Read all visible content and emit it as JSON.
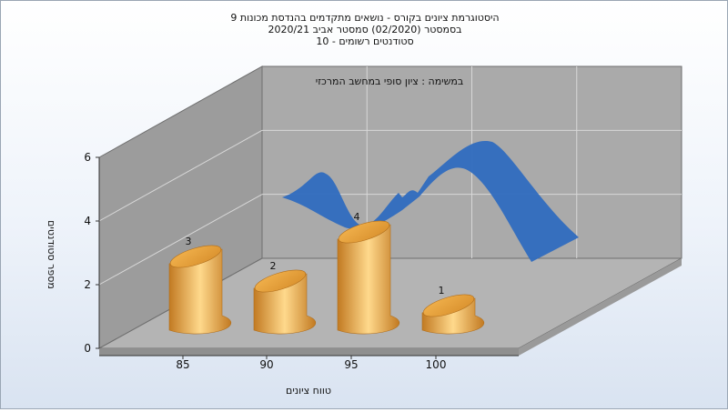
{
  "chart_data": {
    "type": "bar",
    "title_lines": [
      "היסטוגרמת ציונים בקורס - נושאים מתקדמים בהנדסת מכונות 9",
      "בסמסטר  (02/2020)  סמסטר אביב 2020/21",
      "סטודנטים רשומים - 10"
    ],
    "subtitle": "במשימה : ציון סופי במחשב המרכזי",
    "xlabel": "טווח ציונים",
    "ylabel": "מספר סטודנטים",
    "categories": [
      "85",
      "90",
      "95",
      "100"
    ],
    "values": [
      3,
      2,
      4,
      1
    ],
    "data_labels": [
      "3",
      "2",
      "4",
      "1"
    ],
    "y_ticks": [
      "0",
      "2",
      "4",
      "6"
    ],
    "ylim": [
      0,
      6
    ],
    "trend_curve": true,
    "colors": {
      "bar_light": "#ffd280",
      "bar_dark": "#c77e22",
      "curve": "#2f6bbf",
      "wall": "#a5a5a5",
      "floor": "#b3b3b3"
    }
  }
}
